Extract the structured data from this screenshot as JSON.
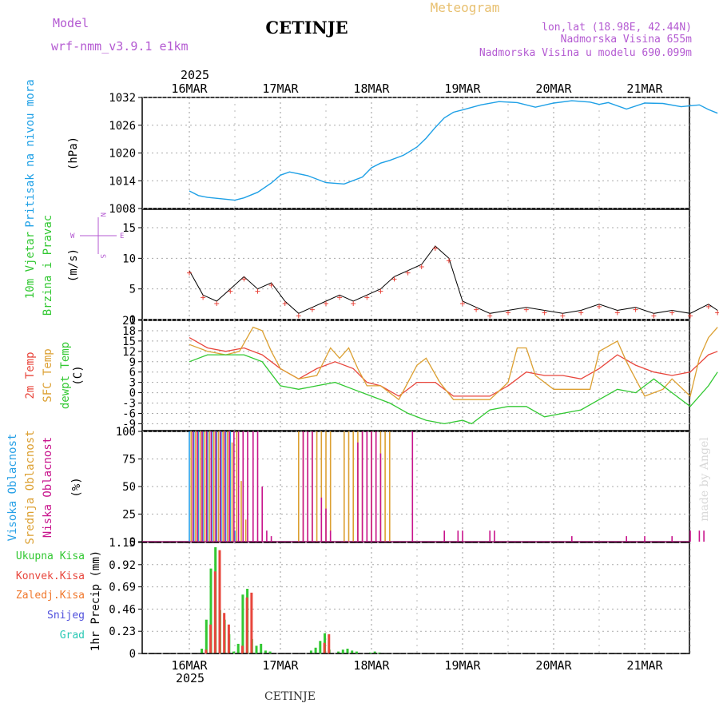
{
  "header": {
    "model_label": "Model",
    "model_name": "wrf-nmm_v3.9.1 e1km",
    "station": "CETINJE",
    "meteogram": "Meteogram",
    "lonlat": "lon,lat (18.98E, 42.44N)",
    "altitude": "Nadmorska Visina 655m",
    "model_altitude": "Nadmorska Visina u modelu 690.099m",
    "footer_station": "CETINJE",
    "watermark": "made by Angel",
    "year": "2025"
  },
  "colors": {
    "pressure": "#1ea0e6",
    "temp2m": "#e8463c",
    "sfc": "#dca032",
    "dew": "#32c832",
    "high_cloud": "#28a0e6",
    "mid_cloud": "#dca032",
    "low_cloud": "#c8148c",
    "ukupna": "#32c832",
    "konvek": "#e8463c",
    "zaledj": "#f0782d",
    "snijeg": "#5050dc",
    "grad": "#28c8b4"
  },
  "chart_data": [
    {
      "type": "line",
      "panel": "pressure",
      "ylabel_main": "Pritisak na nivou mora",
      "unit": "(hPa)",
      "ylim": [
        1008,
        1032
      ],
      "yticks": [
        "1032",
        "1026",
        "1020",
        "1014",
        "1008"
      ],
      "x_days": [
        "16MAR",
        "17MAR",
        "18MAR",
        "19MAR",
        "20MAR",
        "21MAR"
      ],
      "series": [
        {
          "key": "pressure",
          "x": [
            0,
            0.1,
            0.2,
            0.35,
            0.5,
            0.6,
            0.75,
            0.9,
            1.0,
            1.1,
            1.3,
            1.5,
            1.7,
            1.9,
            2.0,
            2.1,
            2.2,
            2.35,
            2.5,
            2.6,
            2.7,
            2.8,
            2.9,
            3.0,
            3.2,
            3.4,
            3.6,
            3.8,
            4.0,
            4.2,
            4.4,
            4.5,
            4.6,
            4.8,
            5.0,
            5.2,
            5.4,
            5.6,
            5.7,
            5.8
          ],
          "values": [
            1011.8,
            1010.8,
            1010.4,
            1010.1,
            1009.8,
            1010.3,
            1011.5,
            1013.5,
            1015.2,
            1015.9,
            1015.1,
            1013.6,
            1013.3,
            1014.8,
            1016.8,
            1017.8,
            1018.4,
            1019.5,
            1021.3,
            1023.2,
            1025.5,
            1027.6,
            1028.8,
            1029.3,
            1030.4,
            1031.1,
            1030.9,
            1029.9,
            1030.8,
            1031.3,
            1031.0,
            1030.5,
            1030.9,
            1029.5,
            1030.8,
            1030.7,
            1030.0,
            1030.4,
            1029.4,
            1028.6
          ]
        }
      ]
    },
    {
      "type": "line",
      "panel": "wind",
      "ylabel_lines": [
        "10m Vjetar",
        "Brzina i Pravac"
      ],
      "unit": "(m/s)",
      "compass": [
        "W",
        "E",
        "N",
        "S"
      ],
      "ylim": [
        0,
        18
      ],
      "yticks": [
        "15",
        "10",
        "5",
        "0"
      ],
      "series": [
        {
          "key": "wind_speed",
          "x": [
            0,
            0.15,
            0.3,
            0.45,
            0.6,
            0.75,
            0.9,
            1.05,
            1.2,
            1.35,
            1.5,
            1.65,
            1.8,
            1.95,
            2.1,
            2.25,
            2.4,
            2.55,
            2.7,
            2.85,
            3.0,
            3.15,
            3.3,
            3.5,
            3.7,
            3.9,
            4.1,
            4.3,
            4.5,
            4.7,
            4.9,
            5.1,
            5.3,
            5.5,
            5.7,
            5.8
          ],
          "values": [
            8,
            4,
            3,
            5,
            7,
            5,
            6,
            3,
            1,
            2,
            3,
            4,
            3,
            4,
            5,
            7,
            8,
            9,
            12,
            10,
            3,
            2,
            1,
            1.5,
            2,
            1.5,
            1,
            1.5,
            2.5,
            1.5,
            2,
            1,
            1.5,
            1,
            2.5,
            1.5
          ]
        }
      ]
    },
    {
      "type": "line",
      "panel": "temperature",
      "ylabel_lines": [
        "2m Temp",
        "SFC Temp",
        "dewpt Temp"
      ],
      "unit": "(C)",
      "ylim": [
        -11,
        21
      ],
      "yticks": [
        "21",
        "18",
        "15",
        "12",
        "9",
        "6",
        "3",
        "0",
        "-3",
        "-6",
        "-9"
      ],
      "series": [
        {
          "key": "temp2m",
          "x": [
            0,
            0.2,
            0.4,
            0.6,
            0.8,
            1.0,
            1.2,
            1.4,
            1.6,
            1.8,
            1.95,
            2.1,
            2.3,
            2.5,
            2.7,
            2.9,
            3.1,
            3.3,
            3.5,
            3.7,
            3.9,
            4.1,
            4.3,
            4.5,
            4.7,
            4.9,
            5.1,
            5.3,
            5.5,
            5.7,
            5.8
          ],
          "values": [
            16,
            13,
            12,
            13,
            11,
            7,
            4,
            7,
            9,
            7,
            3,
            2,
            -1,
            3,
            3,
            -1,
            -1,
            -1,
            2,
            6,
            5,
            5,
            4,
            7,
            11,
            8,
            6,
            5,
            6,
            11,
            12
          ]
        },
        {
          "key": "sfc",
          "x": [
            0,
            0.2,
            0.4,
            0.55,
            0.7,
            0.8,
            0.9,
            1.0,
            1.2,
            1.4,
            1.55,
            1.65,
            1.75,
            1.85,
            1.95,
            2.1,
            2.3,
            2.5,
            2.6,
            2.75,
            2.9,
            3.1,
            3.3,
            3.5,
            3.6,
            3.7,
            3.8,
            4.0,
            4.2,
            4.4,
            4.5,
            4.7,
            4.8,
            5.0,
            5.2,
            5.3,
            5.5,
            5.6,
            5.7,
            5.8
          ],
          "values": [
            14,
            12,
            11,
            12,
            19,
            18,
            12,
            7,
            4,
            5,
            13,
            10,
            13,
            7,
            2,
            2,
            -2,
            8,
            10,
            3,
            -2,
            -2,
            -2,
            3,
            13,
            13,
            5,
            1,
            1,
            1,
            12,
            15,
            9,
            -1,
            1,
            4,
            -1,
            10,
            16,
            19
          ]
        },
        {
          "key": "dew",
          "x": [
            0,
            0.2,
            0.4,
            0.6,
            0.8,
            1.0,
            1.2,
            1.4,
            1.6,
            1.8,
            2.0,
            2.2,
            2.4,
            2.6,
            2.8,
            3.0,
            3.1,
            3.3,
            3.5,
            3.7,
            3.9,
            4.1,
            4.3,
            4.5,
            4.7,
            4.9,
            5.1,
            5.3,
            5.5,
            5.7,
            5.8
          ],
          "values": [
            9,
            11,
            11,
            11,
            9,
            2,
            1,
            2,
            3,
            1,
            -1,
            -3,
            -6,
            -8,
            -9,
            -8,
            -9,
            -5,
            -4,
            -4,
            -7,
            -6,
            -5,
            -2,
            1,
            0,
            4,
            0,
            -4,
            2,
            6
          ]
        }
      ]
    },
    {
      "type": "bar",
      "panel": "cloud",
      "ylabel_lines": [
        "Visoka Oblacnost",
        "Srednja Oblacnost",
        "Niska Oblacnost"
      ],
      "unit": "(%)",
      "ylim": [
        0,
        100
      ],
      "yticks": [
        "100",
        "75",
        "50",
        "25",
        "0"
      ],
      "series": [
        {
          "key": "high_cloud",
          "x": [
            0.0,
            0.05,
            0.1,
            0.15,
            0.2,
            0.25,
            0.3,
            0.35,
            0.4,
            0.45,
            0.5
          ],
          "values": [
            100,
            100,
            100,
            100,
            100,
            100,
            100,
            100,
            100,
            100,
            10
          ]
        },
        {
          "key": "mid_cloud",
          "x": [
            0.02,
            0.07,
            0.12,
            0.17,
            0.22,
            0.27,
            0.32,
            0.37,
            0.42,
            0.47,
            0.52,
            0.57,
            0.62,
            1.2,
            1.25,
            1.3,
            1.35,
            1.4,
            1.45,
            1.5,
            1.55,
            1.7,
            1.75,
            1.8,
            1.85,
            1.9,
            1.95,
            2.0,
            2.05,
            2.1,
            2.15,
            2.2
          ],
          "values": [
            100,
            100,
            100,
            100,
            100,
            100,
            100,
            100,
            100,
            90,
            100,
            55,
            20,
            100,
            100,
            100,
            100,
            100,
            100,
            100,
            100,
            100,
            100,
            100,
            100,
            100,
            100,
            100,
            100,
            100,
            100,
            100
          ]
        },
        {
          "key": "low_cloud",
          "x": [
            0.04,
            0.09,
            0.14,
            0.19,
            0.24,
            0.29,
            0.34,
            0.39,
            0.44,
            0.49,
            0.54,
            0.59,
            0.64,
            0.7,
            0.75,
            0.8,
            0.85,
            0.9,
            1.25,
            1.3,
            1.35,
            1.45,
            1.5,
            1.55,
            1.85,
            1.9,
            1.95,
            2.0,
            2.05,
            2.1,
            2.45,
            2.8,
            2.95,
            3.0,
            3.3,
            3.35,
            4.2,
            4.8,
            5.0,
            5.3,
            5.5,
            5.6,
            5.65
          ],
          "values": [
            100,
            100,
            100,
            100,
            100,
            100,
            100,
            100,
            100,
            100,
            100,
            100,
            100,
            100,
            100,
            50,
            10,
            5,
            100,
            100,
            100,
            40,
            30,
            10,
            90,
            100,
            100,
            100,
            100,
            80,
            100,
            10,
            10,
            10,
            10,
            10,
            5,
            5,
            5,
            5,
            10,
            10,
            10
          ]
        }
      ]
    },
    {
      "type": "bar",
      "panel": "precip",
      "legend": [
        "Ukupna Kisa",
        "Konvek.Kisa",
        "Zaledj.Kisa",
        "Snijeg",
        "Grad"
      ],
      "ylabel": "1hr Precip (mm)",
      "ylim": [
        0,
        1.15
      ],
      "yticks": [
        "1.15",
        "0.92",
        "0.69",
        "0.46",
        "0.23",
        "0"
      ],
      "x_days": [
        "16MAR",
        "17MAR",
        "18MAR",
        "19MAR",
        "20MAR",
        "21MAR"
      ],
      "year": "2025",
      "series": [
        {
          "key": "ukupna",
          "x": [
            0.15,
            0.2,
            0.25,
            0.3,
            0.35,
            0.4,
            0.45,
            0.5,
            0.55,
            0.6,
            0.65,
            0.7,
            0.75,
            0.8,
            0.85,
            0.9,
            1.35,
            1.4,
            1.45,
            1.5,
            1.55,
            1.65,
            1.7,
            1.75,
            1.8,
            1.85,
            2.0,
            2.05,
            2.1
          ],
          "values": [
            0.05,
            0.35,
            0.88,
            1.1,
            0.45,
            0.35,
            0.2,
            0.02,
            0.1,
            0.61,
            0.67,
            0.15,
            0.08,
            0.1,
            0.03,
            0.02,
            0.03,
            0.06,
            0.13,
            0.21,
            0.04,
            0.02,
            0.04,
            0.05,
            0.03,
            0.02,
            0.01,
            0.02,
            0.01
          ]
        },
        {
          "key": "konvek",
          "x": [
            0.17,
            0.22,
            0.27,
            0.32,
            0.37,
            0.42,
            0.57,
            0.62,
            0.67,
            1.47,
            1.52
          ],
          "values": [
            0.04,
            0.3,
            0.85,
            1.07,
            0.42,
            0.3,
            0.08,
            0.58,
            0.63,
            0.11,
            0.2
          ]
        }
      ]
    }
  ]
}
